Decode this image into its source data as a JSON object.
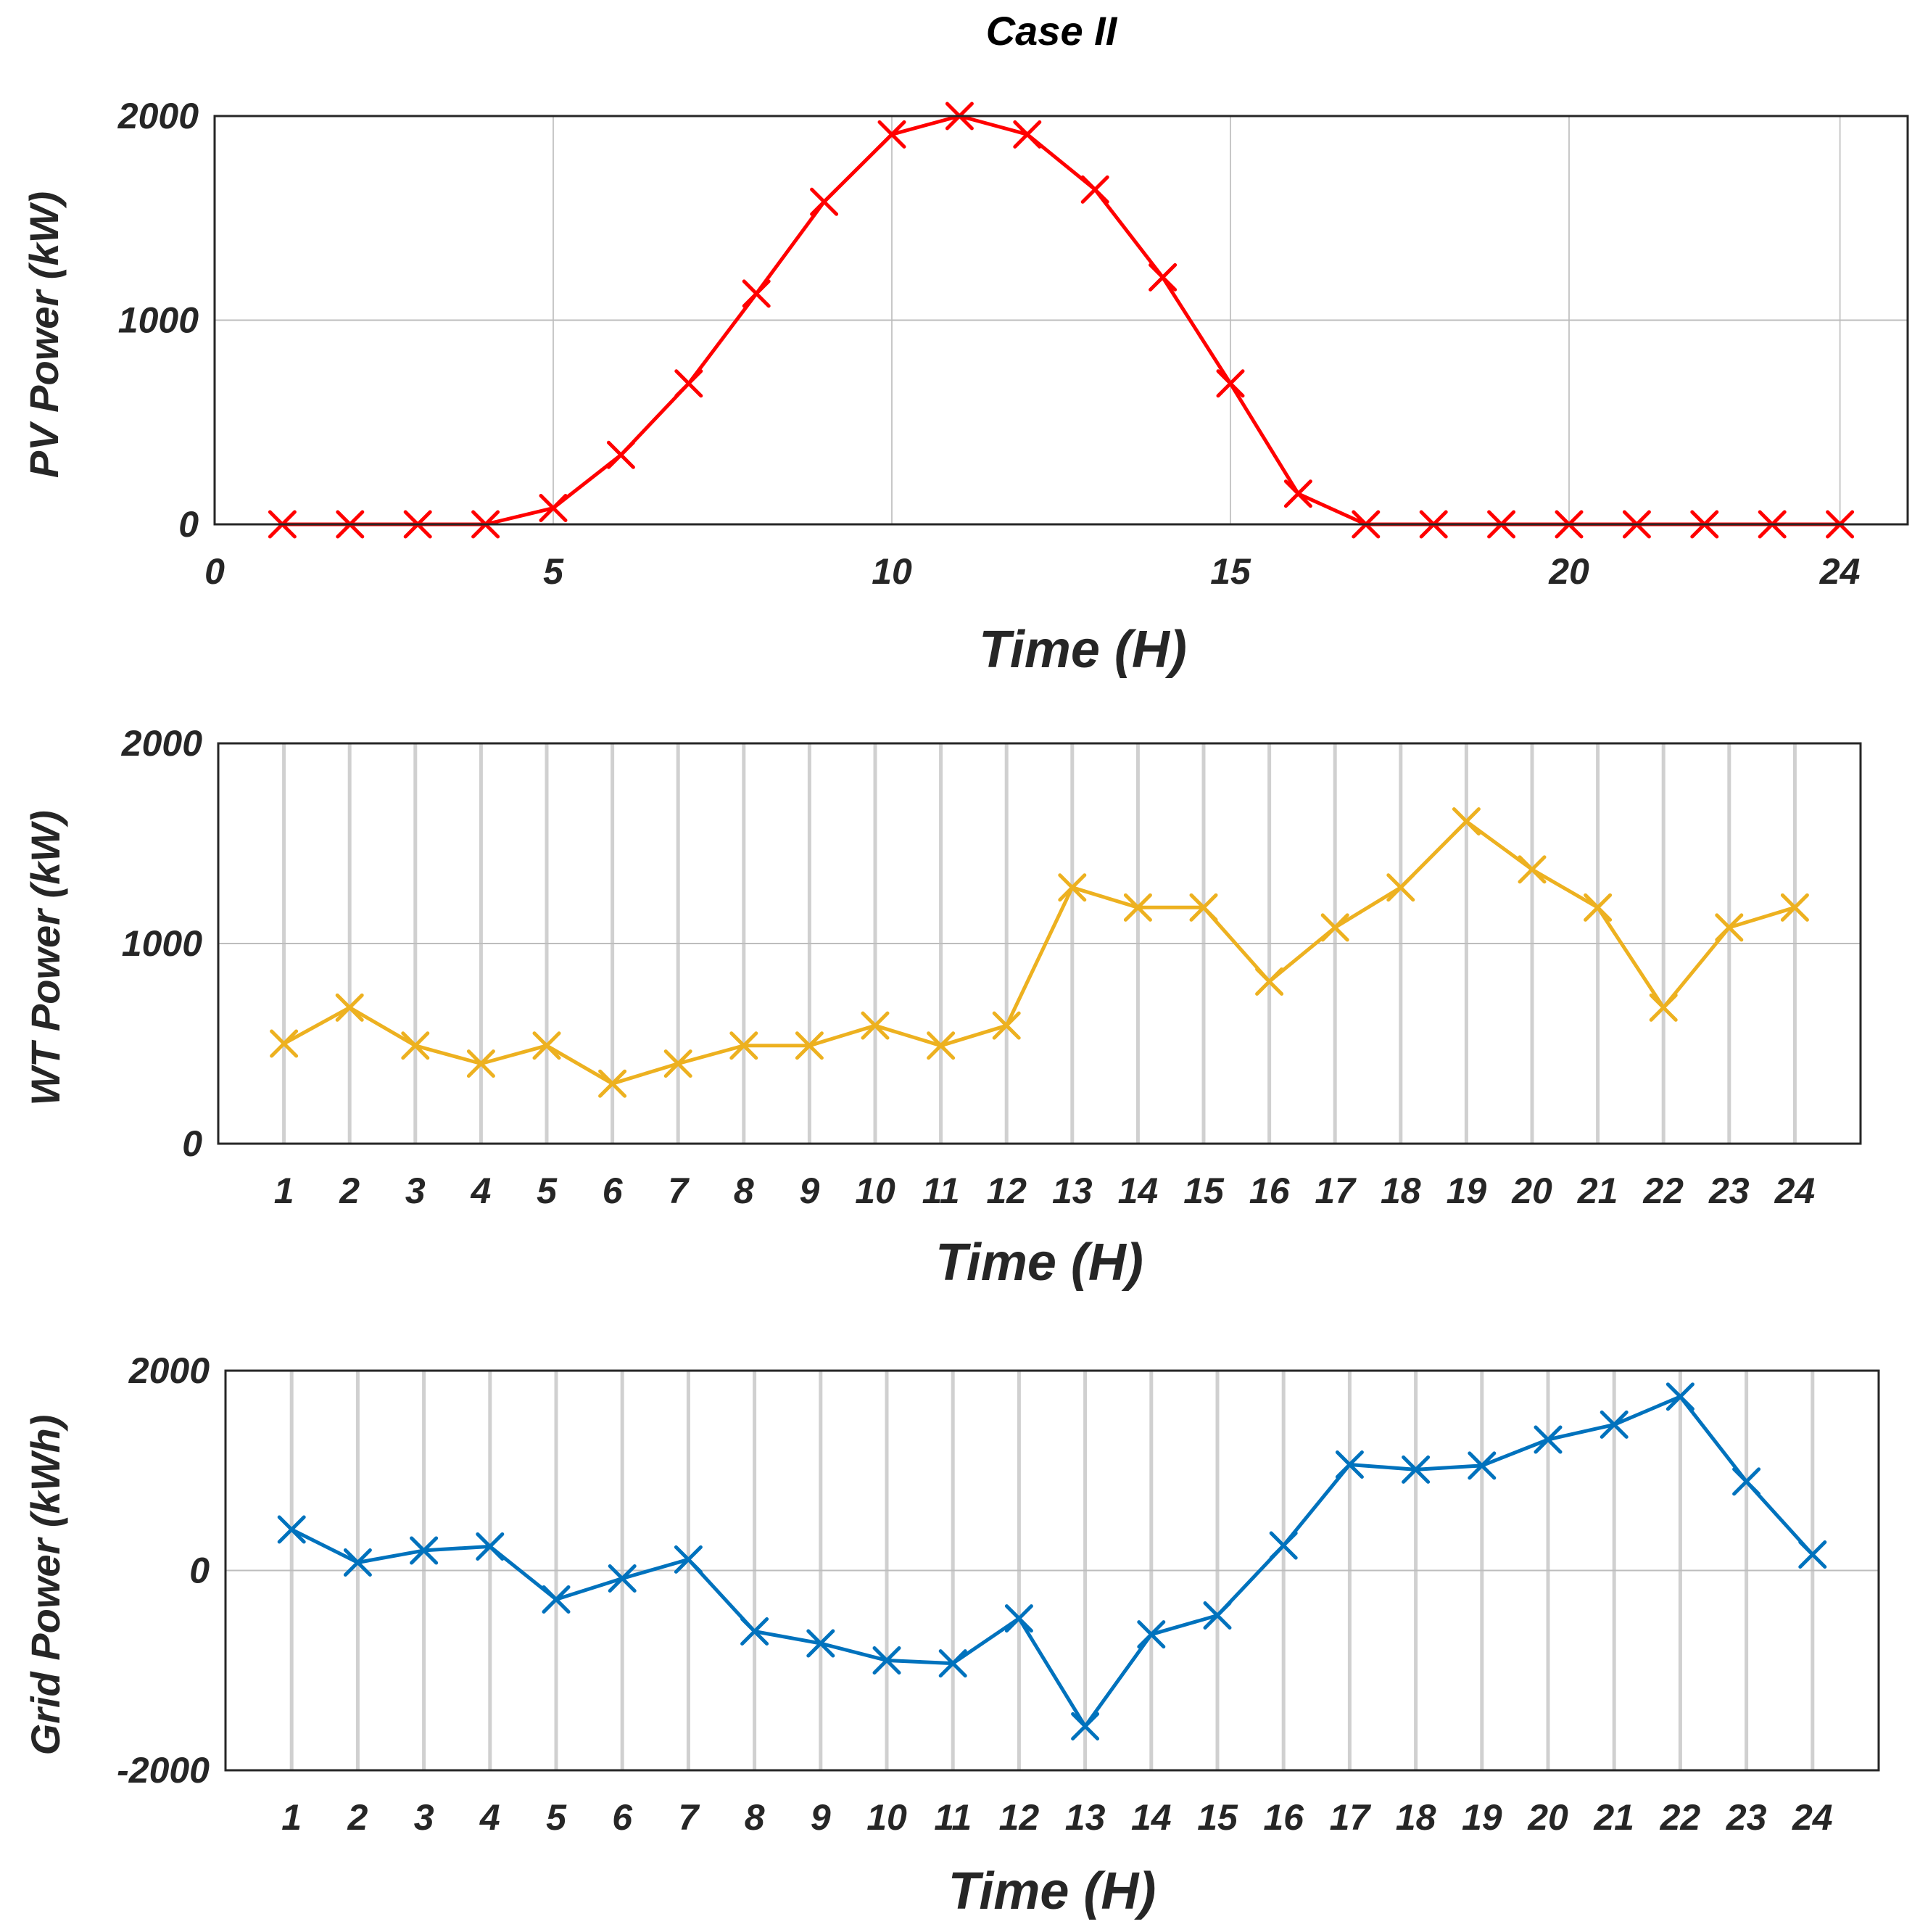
{
  "chart_data": [
    {
      "type": "line",
      "title": "Case II",
      "xlabel": "Time (H)",
      "ylabel": "PV Power (kW)",
      "xlim": [
        0,
        25
      ],
      "ylim": [
        0,
        2000
      ],
      "xticks": [
        "0",
        "5",
        "10",
        "15",
        "20",
        "24"
      ],
      "xtick_values": [
        0,
        5,
        10,
        15,
        20,
        24
      ],
      "yticks": [
        "0",
        "1000",
        "2000"
      ],
      "ytick_values": [
        0,
        1000,
        2000
      ],
      "grid": true,
      "color": "#ff0000",
      "marker": "x",
      "x": [
        1,
        2,
        3,
        4,
        5,
        6,
        7,
        8,
        9,
        10,
        11,
        12,
        13,
        14,
        15,
        16,
        17,
        18,
        19,
        20,
        21,
        22,
        23,
        24
      ],
      "y": [
        0,
        0,
        0,
        0,
        80,
        340,
        690,
        1130,
        1580,
        1910,
        2000,
        1910,
        1640,
        1210,
        690,
        150,
        0,
        0,
        0,
        0,
        0,
        0,
        0,
        0
      ]
    },
    {
      "type": "line",
      "xlabel": "Time (H)",
      "ylabel": "WT Power (kW)",
      "xlim": [
        0,
        25
      ],
      "ylim": [
        0,
        2000
      ],
      "xticks": [
        "1",
        "2",
        "3",
        "4",
        "5",
        "6",
        "7",
        "8",
        "9",
        "10",
        "11",
        "12",
        "13",
        "14",
        "15",
        "16",
        "17",
        "18",
        "19",
        "20",
        "21",
        "22",
        "23",
        "24"
      ],
      "xtick_values": [
        1,
        2,
        3,
        4,
        5,
        6,
        7,
        8,
        9,
        10,
        11,
        12,
        13,
        14,
        15,
        16,
        17,
        18,
        19,
        20,
        21,
        22,
        23,
        24
      ],
      "yticks": [
        "0",
        "1000",
        "2000"
      ],
      "ytick_values": [
        0,
        1000,
        2000
      ],
      "grid": true,
      "color": "#edb120",
      "marker": "x",
      "x": [
        1,
        2,
        3,
        4,
        5,
        6,
        7,
        8,
        9,
        10,
        11,
        12,
        13,
        14,
        15,
        16,
        17,
        18,
        19,
        20,
        21,
        22,
        23,
        24
      ],
      "y": [
        500,
        680,
        490,
        400,
        490,
        300,
        400,
        490,
        490,
        590,
        490,
        590,
        1280,
        1180,
        1180,
        810,
        1080,
        1280,
        1610,
        1370,
        1180,
        680,
        1080,
        1180
      ]
    },
    {
      "type": "line",
      "xlabel": "Time (H)",
      "ylabel": "Grid Power (kWh)",
      "xlim": [
        0,
        25
      ],
      "ylim": [
        -2000,
        2000
      ],
      "xticks": [
        "1",
        "2",
        "3",
        "4",
        "5",
        "6",
        "7",
        "8",
        "9",
        "10",
        "11",
        "12",
        "13",
        "14",
        "15",
        "16",
        "17",
        "18",
        "19",
        "20",
        "21",
        "22",
        "23",
        "24"
      ],
      "xtick_values": [
        1,
        2,
        3,
        4,
        5,
        6,
        7,
        8,
        9,
        10,
        11,
        12,
        13,
        14,
        15,
        16,
        17,
        18,
        19,
        20,
        21,
        22,
        23,
        24
      ],
      "yticks": [
        "-2000",
        "0",
        "2000"
      ],
      "ytick_values": [
        -2000,
        0,
        2000
      ],
      "grid": true,
      "color": "#0072bd",
      "marker": "x",
      "x": [
        1,
        2,
        3,
        4,
        5,
        6,
        7,
        8,
        9,
        10,
        11,
        12,
        13,
        14,
        15,
        16,
        17,
        18,
        19,
        20,
        21,
        22,
        23,
        24
      ],
      "y": [
        410,
        80,
        200,
        240,
        -290,
        -80,
        110,
        -610,
        -730,
        -900,
        -930,
        -480,
        -1560,
        -640,
        -450,
        250,
        1060,
        1010,
        1050,
        1310,
        1460,
        1740,
        890,
        160
      ]
    }
  ]
}
